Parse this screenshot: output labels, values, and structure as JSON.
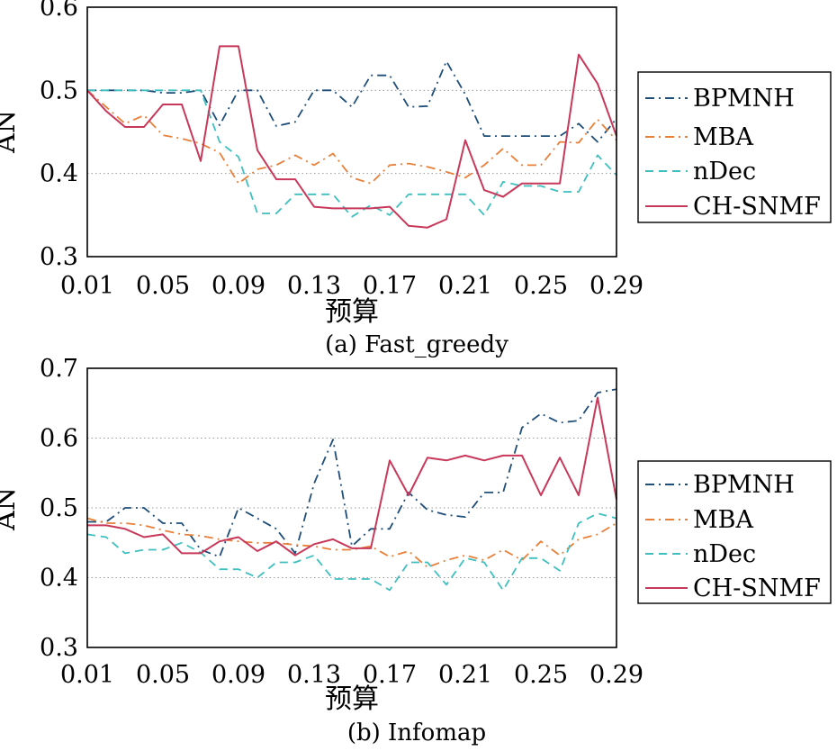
{
  "colors": {
    "BPMNH": "#1f4e79",
    "MBA": "#e8803a",
    "nDec": "#3fbfbf",
    "CH-SNMF": "#c8385a",
    "grid": "#9a9a9a",
    "frame": "#000000"
  },
  "chart_data": [
    {
      "type": "line",
      "caption": "(a) Fast_greedy",
      "xlabel": "预算",
      "ylabel": "AN",
      "ylim": [
        0.3,
        0.6
      ],
      "yticks": [
        "0.3",
        "0.4",
        "0.5",
        "0.6"
      ],
      "xlim": [
        0.01,
        0.29
      ],
      "xticks": [
        "0.01",
        "0.05",
        "0.09",
        "0.13",
        "0.17",
        "0.21",
        "0.25",
        "0.29"
      ],
      "grid": "horizontal dotted",
      "legend_position": "right",
      "x": [
        0.01,
        0.02,
        0.03,
        0.04,
        0.05,
        0.06,
        0.07,
        0.08,
        0.09,
        0.1,
        0.11,
        0.12,
        0.13,
        0.14,
        0.15,
        0.16,
        0.17,
        0.18,
        0.19,
        0.2,
        0.21,
        0.22,
        0.23,
        0.24,
        0.25,
        0.26,
        0.27,
        0.28,
        0.29
      ],
      "series": [
        {
          "name": "BPMNH",
          "style": "dashdot",
          "values": [
            0.5,
            0.5,
            0.5,
            0.5,
            0.497,
            0.497,
            0.5,
            0.458,
            0.5,
            0.5,
            0.457,
            0.462,
            0.5,
            0.5,
            0.48,
            0.518,
            0.518,
            0.48,
            0.481,
            0.535,
            0.495,
            0.445,
            0.445,
            0.445,
            0.445,
            0.445,
            0.46,
            0.438,
            0.466
          ]
        },
        {
          "name": "MBA",
          "style": "dashdot",
          "values": [
            0.5,
            0.48,
            0.46,
            0.47,
            0.446,
            0.442,
            0.436,
            0.425,
            0.388,
            0.405,
            0.41,
            0.422,
            0.41,
            0.424,
            0.395,
            0.388,
            0.41,
            0.412,
            0.408,
            0.402,
            0.395,
            0.41,
            0.43,
            0.41,
            0.41,
            0.438,
            0.437,
            0.465,
            0.44
          ]
        },
        {
          "name": "nDec",
          "style": "dashed",
          "values": [
            0.5,
            0.5,
            0.5,
            0.5,
            0.5,
            0.5,
            0.5,
            0.438,
            0.42,
            0.352,
            0.352,
            0.375,
            0.375,
            0.375,
            0.348,
            0.362,
            0.35,
            0.375,
            0.375,
            0.375,
            0.375,
            0.35,
            0.39,
            0.385,
            0.385,
            0.378,
            0.378,
            0.422,
            0.398
          ]
        },
        {
          "name": "CH-SNMF",
          "style": "solid",
          "values": [
            0.5,
            0.475,
            0.456,
            0.456,
            0.483,
            0.483,
            0.415,
            0.553,
            0.553,
            0.428,
            0.393,
            0.393,
            0.36,
            0.358,
            0.358,
            0.358,
            0.36,
            0.337,
            0.335,
            0.345,
            0.44,
            0.38,
            0.372,
            0.388,
            0.388,
            0.388,
            0.543,
            0.508,
            0.445
          ]
        }
      ]
    },
    {
      "type": "line",
      "caption": "(b) Infomap",
      "xlabel": "预算",
      "ylabel": "AN",
      "ylim": [
        0.3,
        0.7
      ],
      "yticks": [
        "0.3",
        "0.4",
        "0.5",
        "0.6",
        "0.7"
      ],
      "xlim": [
        0.01,
        0.29
      ],
      "xticks": [
        "0.01",
        "0.05",
        "0.09",
        "0.13",
        "0.17",
        "0.21",
        "0.25",
        "0.29"
      ],
      "grid": "horizontal dotted",
      "legend_position": "right",
      "x": [
        0.01,
        0.02,
        0.03,
        0.04,
        0.05,
        0.06,
        0.07,
        0.08,
        0.09,
        0.1,
        0.11,
        0.12,
        0.13,
        0.14,
        0.15,
        0.16,
        0.17,
        0.18,
        0.19,
        0.2,
        0.21,
        0.22,
        0.23,
        0.24,
        0.25,
        0.26,
        0.27,
        0.28,
        0.29
      ],
      "series": [
        {
          "name": "BPMNH",
          "style": "dashdot",
          "values": [
            0.48,
            0.48,
            0.5,
            0.5,
            0.478,
            0.478,
            0.44,
            0.43,
            0.5,
            0.485,
            0.47,
            0.435,
            0.535,
            0.598,
            0.445,
            0.47,
            0.47,
            0.522,
            0.497,
            0.49,
            0.487,
            0.522,
            0.522,
            0.615,
            0.635,
            0.622,
            0.625,
            0.665,
            0.67
          ]
        },
        {
          "name": "MBA",
          "style": "dashdot",
          "values": [
            0.485,
            0.478,
            0.478,
            0.475,
            0.468,
            0.462,
            0.46,
            0.455,
            0.452,
            0.45,
            0.45,
            0.447,
            0.445,
            0.44,
            0.44,
            0.445,
            0.43,
            0.438,
            0.415,
            0.425,
            0.432,
            0.425,
            0.44,
            0.425,
            0.452,
            0.432,
            0.455,
            0.462,
            0.478
          ]
        },
        {
          "name": "nDec",
          "style": "dashed",
          "values": [
            0.462,
            0.458,
            0.435,
            0.44,
            0.44,
            0.45,
            0.436,
            0.412,
            0.412,
            0.4,
            0.422,
            0.422,
            0.432,
            0.398,
            0.398,
            0.398,
            0.382,
            0.422,
            0.422,
            0.39,
            0.428,
            0.422,
            0.382,
            0.428,
            0.428,
            0.41,
            0.478,
            0.492,
            0.485
          ]
        },
        {
          "name": "CH-SNMF",
          "style": "solid",
          "values": [
            0.475,
            0.475,
            0.47,
            0.458,
            0.462,
            0.435,
            0.435,
            0.452,
            0.458,
            0.438,
            0.452,
            0.432,
            0.448,
            0.455,
            0.442,
            0.442,
            0.568,
            0.518,
            0.572,
            0.568,
            0.575,
            0.568,
            0.575,
            0.575,
            0.518,
            0.572,
            0.518,
            0.658,
            0.512
          ]
        }
      ]
    }
  ]
}
